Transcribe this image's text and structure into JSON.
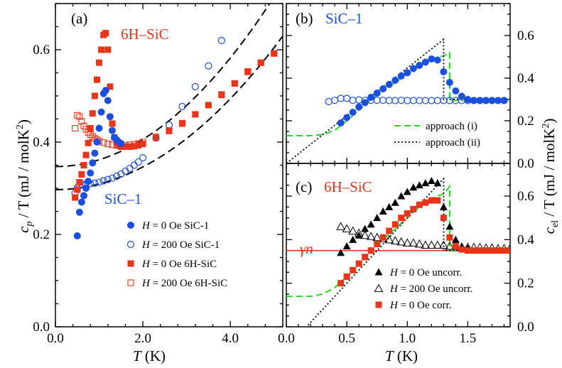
{
  "figure": {
    "xlabel_var": "T",
    "xlabel_unit": " (K)",
    "ylabel_left_main": "c",
    "ylabel_left_sub": "p",
    "ylabel_left_rest": " / T (mJ / molK",
    "ylabel_left_sup": "2",
    "ylabel_left_end": ")",
    "ylabel_right_main": "c",
    "ylabel_right_sub": "el",
    "ylabel_right_rest": " / T (mJ / molK",
    "ylabel_right_sup": "2",
    "ylabel_right_end": ")"
  },
  "colors": {
    "blue": "#1a4fe0",
    "red": "#e8351a",
    "green": "#22dd22",
    "black": "#000000"
  },
  "chart_data": [
    {
      "panel": "a",
      "type": "scatter",
      "panel_label": "(a)",
      "annotations": [
        "6H–SiC",
        "SiC–1"
      ],
      "xlim": [
        0,
        5.2
      ],
      "ylim": [
        0,
        0.7
      ],
      "xticks": [
        0,
        2,
        4
      ],
      "xtick_labels": [
        "0.0",
        "2.0",
        "4.0"
      ],
      "yticks": [
        0,
        0.2,
        0.4,
        0.6
      ],
      "ytick_labels": [
        "0.0",
        "0.2",
        "0.4",
        "0.6"
      ],
      "series": [
        {
          "name": "H = 0 Oe SiC-1",
          "marker": "filled-circle",
          "color": "blue",
          "x": [
            0.5,
            0.55,
            0.6,
            0.65,
            0.7,
            0.75,
            0.8,
            0.85,
            0.9,
            0.95,
            1.0,
            1.05,
            1.1,
            1.15,
            1.2,
            1.25,
            1.3,
            1.35,
            1.4,
            1.45,
            1.5
          ],
          "y": [
            0.197,
            0.248,
            0.27,
            0.284,
            0.3,
            0.315,
            0.333,
            0.355,
            0.376,
            0.4,
            0.43,
            0.465,
            0.505,
            0.512,
            0.49,
            0.455,
            0.425,
            0.41,
            0.405,
            0.4,
            0.397
          ]
        },
        {
          "name": "H = 200 Oe SiC-1",
          "marker": "open-circle",
          "color": "blue",
          "x": [
            0.45,
            0.5,
            0.55,
            0.6,
            0.7,
            0.8,
            0.9,
            1.0,
            1.1,
            1.2,
            1.3,
            1.4,
            1.5,
            1.6,
            1.7,
            1.8,
            1.9,
            2.0,
            2.3,
            2.6,
            2.9,
            3.2,
            3.5,
            3.8
          ],
          "y": [
            0.29,
            0.301,
            0.306,
            0.309,
            0.309,
            0.31,
            0.311,
            0.313,
            0.316,
            0.319,
            0.322,
            0.326,
            0.331,
            0.337,
            0.343,
            0.35,
            0.357,
            0.366,
            0.409,
            0.437,
            0.477,
            0.52,
            0.565,
            0.62
          ]
        },
        {
          "name": "H = 0 Oe 6H-SiC",
          "marker": "filled-square",
          "color": "red",
          "x": [
            0.45,
            0.5,
            0.55,
            0.6,
            0.65,
            0.7,
            0.75,
            0.8,
            0.85,
            0.9,
            0.95,
            1.0,
            1.05,
            1.1,
            1.15,
            1.2,
            1.25,
            1.3,
            1.35,
            1.4,
            1.45,
            1.5,
            1.6,
            1.7,
            1.8,
            1.9,
            2.0,
            2.3,
            2.6,
            2.9,
            3.2,
            3.5,
            3.8,
            4.1,
            4.4,
            4.7,
            5.0
          ],
          "y": [
            0.28,
            0.297,
            0.313,
            0.33,
            0.35,
            0.372,
            0.398,
            0.43,
            0.462,
            0.5,
            0.535,
            0.572,
            0.6,
            0.632,
            0.636,
            0.6,
            0.52,
            0.44,
            0.41,
            0.398,
            0.393,
            0.39,
            0.39,
            0.39,
            0.391,
            0.393,
            0.396,
            0.41,
            0.424,
            0.44,
            0.46,
            0.48,
            0.502,
            0.527,
            0.553,
            0.572,
            0.592
          ]
        },
        {
          "name": "H = 200 Oe 6H-SiC",
          "marker": "open-square",
          "color": "red",
          "x": [
            0.45,
            0.5,
            0.55,
            0.6,
            0.65,
            0.7,
            0.75,
            0.8,
            0.85,
            0.9,
            0.95,
            1.0,
            1.1,
            1.2,
            1.3,
            1.4,
            1.5,
            1.6,
            1.7,
            1.8,
            1.9,
            2.0,
            2.3,
            2.6,
            2.9,
            3.2,
            3.5,
            3.8,
            4.1,
            4.4,
            4.7,
            5.0
          ],
          "y": [
            0.43,
            0.458,
            0.455,
            0.445,
            0.435,
            0.428,
            0.421,
            0.416,
            0.412,
            0.408,
            0.405,
            0.402,
            0.399,
            0.396,
            0.394,
            0.393,
            0.393,
            0.393,
            0.394,
            0.395,
            0.397,
            0.4,
            0.411,
            0.425,
            0.441,
            0.46,
            0.48,
            0.503,
            0.527,
            0.552,
            0.572,
            0.592
          ]
        }
      ],
      "fits": [
        {
          "label": "upper-fit",
          "style": "dashed",
          "gamma": 0.347,
          "beta": 0.0147,
          "x": [
            0,
            5.2
          ]
        },
        {
          "label": "lower-fit",
          "style": "dashed",
          "gamma": 0.297,
          "beta": 0.0123,
          "x": [
            0,
            5.2
          ]
        }
      ],
      "legend": {
        "placement": "lower-right",
        "entries": [
          {
            "marker": "filled-circle",
            "color": "blue",
            "var": "H",
            "text": " = 0 Oe SiC-1"
          },
          {
            "marker": "open-circle",
            "color": "blue",
            "var": "H",
            "text": " = 200 Oe SiC-1"
          },
          {
            "marker": "filled-square",
            "color": "red",
            "var": "H",
            "text": " = 0 Oe 6H-SiC"
          },
          {
            "marker": "open-square",
            "color": "red",
            "var": "H",
            "text": " = 200 Oe 6H-SiC"
          }
        ]
      }
    },
    {
      "panel": "b",
      "type": "scatter",
      "panel_label": "(b)",
      "annotations": [
        "SiC–1"
      ],
      "xlim": [
        0,
        1.85
      ],
      "ylim": [
        0,
        0.75
      ],
      "yticks": [
        0,
        0.2,
        0.4,
        0.6
      ],
      "ytick_labels": [
        "0.0",
        "0.2",
        "0.4",
        "0.6"
      ],
      "series": [
        {
          "name": "el filled",
          "marker": "filled-circle",
          "color": "blue",
          "x": [
            0.45,
            0.5,
            0.55,
            0.6,
            0.65,
            0.7,
            0.75,
            0.8,
            0.85,
            0.9,
            0.95,
            1.0,
            1.05,
            1.1,
            1.15,
            1.2,
            1.25,
            1.3,
            1.35,
            1.4,
            1.45,
            1.5,
            1.55,
            1.6,
            1.65,
            1.7,
            1.75,
            1.8
          ],
          "y": [
            0.19,
            0.215,
            0.24,
            0.265,
            0.285,
            0.31,
            0.33,
            0.35,
            0.37,
            0.39,
            0.41,
            0.425,
            0.445,
            0.46,
            0.475,
            0.49,
            0.485,
            0.43,
            0.38,
            0.34,
            0.315,
            0.3,
            0.295,
            0.295,
            0.295,
            0.295,
            0.295,
            0.295
          ]
        },
        {
          "name": "el open",
          "marker": "open-circle",
          "color": "blue",
          "x": [
            0.35,
            0.4,
            0.45,
            0.5,
            0.55,
            0.6,
            0.65,
            0.7,
            0.75,
            0.8,
            0.85,
            0.9,
            0.95,
            1.0,
            1.05,
            1.1,
            1.15,
            1.2,
            1.25,
            1.3,
            1.35,
            1.4,
            1.45,
            1.5,
            1.55,
            1.6,
            1.65,
            1.7,
            1.75,
            1.8
          ],
          "y": [
            0.29,
            0.296,
            0.305,
            0.305,
            0.296,
            0.298,
            0.296,
            0.296,
            0.296,
            0.296,
            0.295,
            0.295,
            0.296,
            0.295,
            0.295,
            0.295,
            0.295,
            0.295,
            0.295,
            0.295,
            0.295,
            0.295,
            0.295,
            0.295,
            0.295,
            0.295,
            0.295,
            0.295,
            0.295,
            0.295
          ]
        }
      ],
      "curves": [
        {
          "name": "approach (i)",
          "style": "green-dashed",
          "x": [
            0,
            0.2,
            0.3,
            0.4,
            0.5,
            0.6,
            0.7,
            0.8,
            0.9,
            1.0,
            1.1,
            1.2,
            1.3,
            1.33,
            1.35,
            1.351,
            1.4,
            1.85
          ],
          "y": [
            0.13,
            0.13,
            0.135,
            0.155,
            0.2,
            0.25,
            0.3,
            0.34,
            0.38,
            0.42,
            0.455,
            0.49,
            0.505,
            0.515,
            0.52,
            0.295,
            0.295,
            0.295
          ]
        },
        {
          "name": "approach (ii)",
          "style": "black-dotted",
          "x": [
            0,
            1.3,
            1.301,
            1.85
          ],
          "y": [
            0,
            0.582,
            0.3,
            0.3
          ]
        }
      ],
      "legend": {
        "placement": "lower-right",
        "entries": [
          {
            "style": "green-dashed",
            "text": "approach (i)"
          },
          {
            "style": "black-dotted",
            "text": "approach (ii)"
          }
        ]
      }
    },
    {
      "panel": "c",
      "type": "scatter",
      "panel_label": "(c)",
      "annotations": [
        "6H–SiC",
        "γn"
      ],
      "xlim": [
        0,
        1.85
      ],
      "ylim": [
        0,
        0.75
      ],
      "xticks": [
        0,
        0.5,
        1.0,
        1.5
      ],
      "xtick_labels": [
        "0.0",
        "0.5",
        "1.0",
        "1.5"
      ],
      "yticks": [
        0,
        0.2,
        0.4,
        0.6
      ],
      "ytick_labels": [
        "0.0",
        "0.2",
        "0.4",
        "0.6"
      ],
      "gamma_n": 0.35,
      "series": [
        {
          "name": "H = 0 Oe uncorr.",
          "marker": "filled-triangle",
          "color": "black",
          "x": [
            0.45,
            0.5,
            0.55,
            0.6,
            0.65,
            0.7,
            0.75,
            0.8,
            0.85,
            0.9,
            0.95,
            1.0,
            1.05,
            1.1,
            1.15,
            1.2,
            1.25,
            1.3,
            1.35,
            1.4,
            1.45,
            1.5
          ],
          "y": [
            0.34,
            0.37,
            0.4,
            0.42,
            0.45,
            0.47,
            0.5,
            0.53,
            0.55,
            0.57,
            0.6,
            0.62,
            0.64,
            0.65,
            0.66,
            0.67,
            0.66,
            0.55,
            0.46,
            0.4,
            0.37,
            0.36
          ]
        },
        {
          "name": "H = 200 Oe uncorr.",
          "marker": "open-triangle",
          "color": "black",
          "x": [
            0.45,
            0.5,
            0.55,
            0.6,
            0.65,
            0.7,
            0.75,
            0.8,
            0.85,
            0.9,
            0.95,
            1.0,
            1.05,
            1.1,
            1.15,
            1.2,
            1.25,
            1.3,
            1.35,
            1.4,
            1.45,
            1.5,
            1.55,
            1.6,
            1.65,
            1.7,
            1.75,
            1.8,
            1.85
          ],
          "y": [
            0.46,
            0.45,
            0.44,
            0.43,
            0.42,
            0.415,
            0.41,
            0.405,
            0.4,
            0.395,
            0.39,
            0.385,
            0.385,
            0.38,
            0.375,
            0.375,
            0.375,
            0.375,
            0.37,
            0.37,
            0.365,
            0.365,
            0.365,
            0.365,
            0.362,
            0.362,
            0.36,
            0.36,
            0.36
          ]
        },
        {
          "name": "H = 0 Oe corr.",
          "marker": "filled-square",
          "color": "red",
          "x": [
            0.45,
            0.5,
            0.55,
            0.6,
            0.65,
            0.7,
            0.75,
            0.8,
            0.85,
            0.9,
            0.95,
            1.0,
            1.05,
            1.1,
            1.15,
            1.2,
            1.25,
            1.3,
            1.35,
            1.4,
            1.45,
            1.5,
            1.55,
            1.6,
            1.65,
            1.7,
            1.75,
            1.8,
            1.85
          ],
          "y": [
            0.2,
            0.23,
            0.26,
            0.29,
            0.32,
            0.35,
            0.38,
            0.41,
            0.44,
            0.47,
            0.5,
            0.52,
            0.54,
            0.56,
            0.57,
            0.58,
            0.58,
            0.5,
            0.41,
            0.37,
            0.355,
            0.35,
            0.35,
            0.35,
            0.35,
            0.35,
            0.35,
            0.35,
            0.35
          ]
        }
      ],
      "curves": [
        {
          "name": "approach (i)",
          "style": "green-dashed",
          "x": [
            0,
            0.2,
            0.3,
            0.4,
            0.5,
            0.6,
            0.7,
            0.8,
            0.9,
            1.0,
            1.1,
            1.2,
            1.3,
            1.33,
            1.35,
            1.351,
            1.85
          ],
          "y": [
            0.14,
            0.14,
            0.15,
            0.18,
            0.23,
            0.29,
            0.35,
            0.4,
            0.45,
            0.5,
            0.55,
            0.59,
            0.61,
            0.63,
            0.645,
            0.35,
            0.35
          ]
        },
        {
          "name": "approach (ii)",
          "style": "black-dotted",
          "x": [
            0,
            1.3,
            1.301,
            1.85
          ],
          "y": [
            -0.1,
            0.68,
            0.35,
            0.35
          ]
        }
      ],
      "legend": {
        "placement": "lower-right",
        "entries": [
          {
            "marker": "filled-triangle",
            "color": "black",
            "var": "H",
            "text": " = 0 Oe uncorr."
          },
          {
            "marker": "open-triangle",
            "color": "black",
            "var": "H",
            "text": " = 200 Oe uncorr."
          },
          {
            "marker": "filled-square",
            "color": "red",
            "var": "H",
            "text": " = 0 Oe corr."
          }
        ]
      }
    }
  ]
}
